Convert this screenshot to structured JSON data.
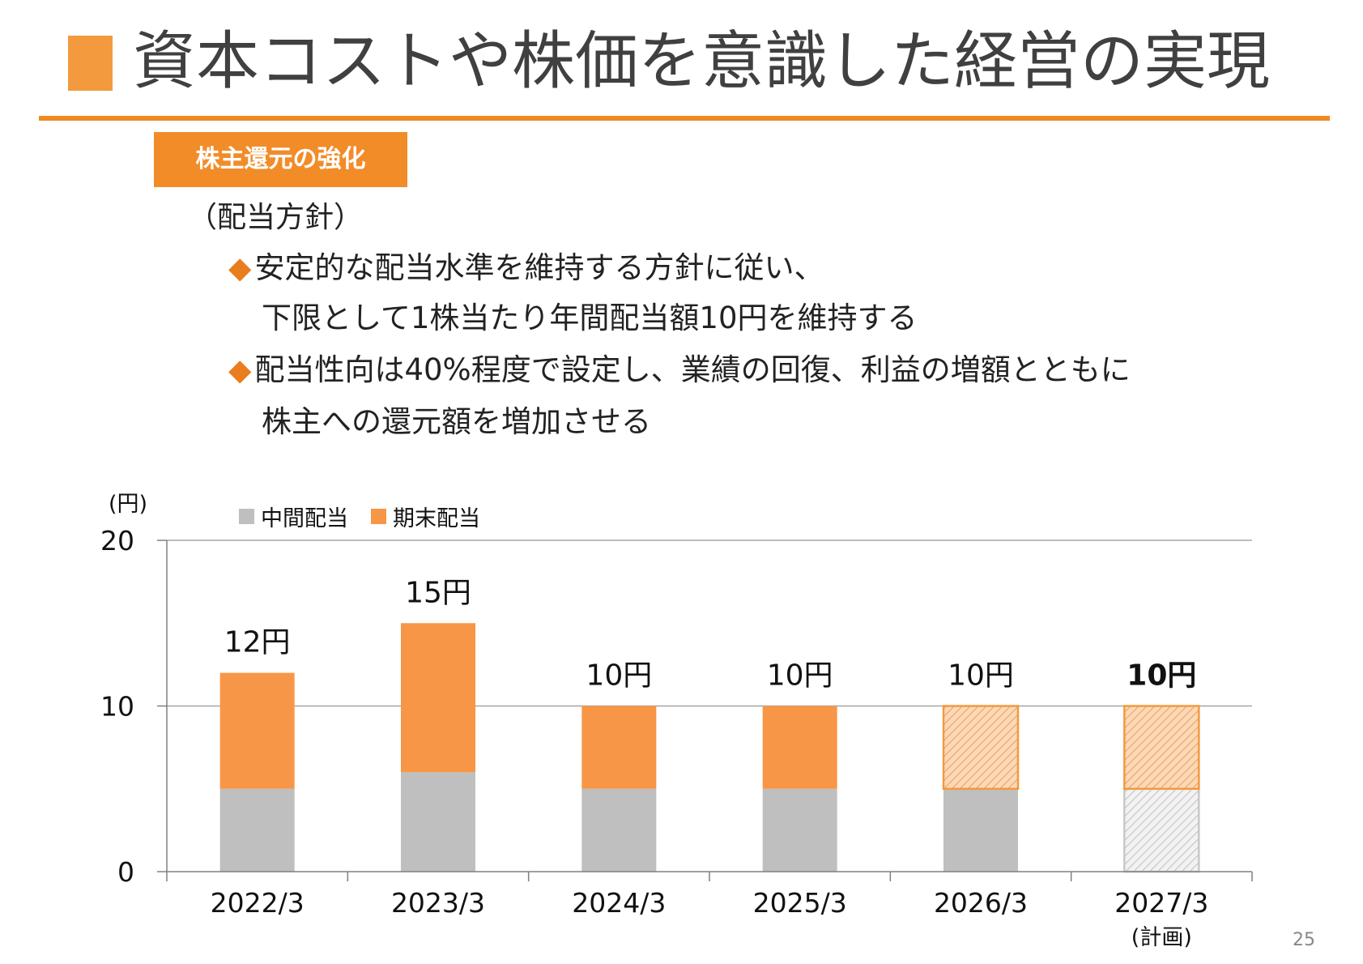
{
  "header": {
    "title": "資本コストや株価を意識した経営の実現",
    "section_label": "株主還元の強化"
  },
  "policy": {
    "heading": "（配当方針）",
    "bullets": [
      {
        "line1": "安定的な配当水準を維持する方針に従い、",
        "line2": "下限として1株当たり年間配当額10円を維持する"
      },
      {
        "line1": "配当性向は40%程度で設定し、業績の回復、利益の増額とともに",
        "line2": "株主への還元額を増加させる"
      }
    ],
    "bullet_symbol": "◆"
  },
  "chart_data": {
    "type": "bar",
    "stacked": true,
    "unit_label": "(円)",
    "categories": [
      "2022/3",
      "2023/3",
      "2024/3",
      "2025/3",
      "2026/3",
      "2027/3"
    ],
    "category_notes": [
      "",
      "",
      "",
      "",
      "",
      "(計画)"
    ],
    "series": [
      {
        "name": "中間配当",
        "values": [
          5,
          6,
          5,
          5,
          5,
          5
        ],
        "color": "#bfbfbf"
      },
      {
        "name": "期末配当",
        "values": [
          7,
          9,
          5,
          5,
          5,
          5
        ],
        "color": "#f79646"
      }
    ],
    "totals": [
      "12円",
      "15円",
      "10円",
      "10円",
      "10円",
      "10円"
    ],
    "total_bold": [
      false,
      false,
      false,
      false,
      false,
      true
    ],
    "hatched_interim": [
      false,
      false,
      false,
      false,
      false,
      true
    ],
    "hatched_final": [
      false,
      false,
      false,
      false,
      true,
      true
    ],
    "yticks": [
      "0",
      "10",
      "20"
    ],
    "ylim": [
      0,
      20
    ],
    "grid": true
  },
  "page_number": "25"
}
